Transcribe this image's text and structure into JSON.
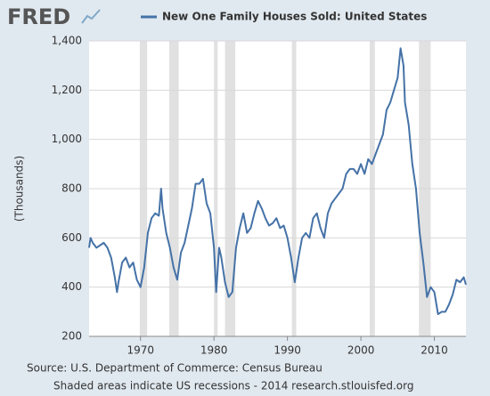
{
  "logo": "FRED",
  "chart_data": {
    "type": "line",
    "y_label": "(Thousands)",
    "xlim": [
      1963,
      2014.3
    ],
    "xticks": [
      1970,
      1980,
      1990,
      2000,
      2010
    ],
    "ylim": [
      200,
      1400
    ],
    "yticks": [
      200,
      400,
      600,
      800,
      {
        "value": 1000,
        "label": "1,000"
      },
      {
        "value": 1200,
        "label": "1,200"
      },
      {
        "value": 1400,
        "label": "1,400"
      }
    ],
    "grid": true,
    "recessions": [
      [
        1969.9,
        1970.9
      ],
      [
        1973.9,
        1975.2
      ],
      [
        1980.0,
        1980.5
      ],
      [
        1981.5,
        1982.9
      ],
      [
        1990.6,
        1991.2
      ],
      [
        2001.2,
        2001.9
      ],
      [
        2007.9,
        2009.5
      ]
    ],
    "series": [
      {
        "name": "New One Family Houses Sold: United States",
        "color": "#4572a7",
        "x": [
          1963.0,
          1963.2,
          1963.5,
          1964.0,
          1964.5,
          1965.0,
          1965.5,
          1966.0,
          1966.5,
          1966.8,
          1967.0,
          1967.5,
          1968.0,
          1968.5,
          1969.0,
          1969.5,
          1970.0,
          1970.5,
          1971.0,
          1971.5,
          1972.0,
          1972.5,
          1972.8,
          1973.0,
          1973.5,
          1974.0,
          1974.5,
          1975.0,
          1975.5,
          1976.0,
          1976.5,
          1977.0,
          1977.5,
          1978.0,
          1978.5,
          1979.0,
          1979.5,
          1980.0,
          1980.3,
          1980.7,
          1981.0,
          1981.5,
          1982.0,
          1982.5,
          1983.0,
          1983.5,
          1984.0,
          1984.5,
          1985.0,
          1985.5,
          1986.0,
          1986.5,
          1987.0,
          1987.5,
          1988.0,
          1988.5,
          1989.0,
          1989.5,
          1990.0,
          1990.5,
          1991.0,
          1991.5,
          1992.0,
          1992.5,
          1993.0,
          1993.5,
          1994.0,
          1994.5,
          1995.0,
          1995.5,
          1996.0,
          1996.5,
          1997.0,
          1997.5,
          1998.0,
          1998.5,
          1999.0,
          1999.5,
          2000.0,
          2000.5,
          2001.0,
          2001.5,
          2002.0,
          2002.5,
          2003.0,
          2003.5,
          2004.0,
          2004.5,
          2005.0,
          2005.4,
          2005.8,
          2006.0,
          2006.5,
          2007.0,
          2007.5,
          2008.0,
          2008.5,
          2009.0,
          2009.5,
          2010.0,
          2010.5,
          2011.0,
          2011.5,
          2012.0,
          2012.5,
          2013.0,
          2013.5,
          2014.0,
          2014.3
        ],
        "values": [
          560,
          600,
          580,
          560,
          570,
          580,
          560,
          520,
          440,
          380,
          420,
          500,
          520,
          480,
          500,
          430,
          400,
          480,
          620,
          680,
          700,
          690,
          800,
          720,
          620,
          560,
          480,
          430,
          540,
          580,
          650,
          720,
          820,
          820,
          840,
          740,
          700,
          560,
          380,
          560,
          520,
          420,
          360,
          380,
          560,
          640,
          700,
          620,
          640,
          700,
          750,
          720,
          680,
          650,
          660,
          680,
          640,
          650,
          600,
          520,
          420,
          520,
          600,
          620,
          600,
          680,
          700,
          640,
          600,
          700,
          740,
          760,
          780,
          800,
          860,
          880,
          880,
          860,
          900,
          860,
          920,
          900,
          940,
          980,
          1020,
          1120,
          1150,
          1200,
          1250,
          1370,
          1300,
          1150,
          1060,
          900,
          800,
          620,
          500,
          360,
          400,
          380,
          290,
          300,
          300,
          330,
          370,
          430,
          420,
          440,
          410
        ]
      }
    ]
  },
  "footer": {
    "source": "Source: U.S. Department of Commerce: Census Bureau",
    "note": "Shaded areas indicate US recessions - 2014 research.stlouisfed.org"
  }
}
